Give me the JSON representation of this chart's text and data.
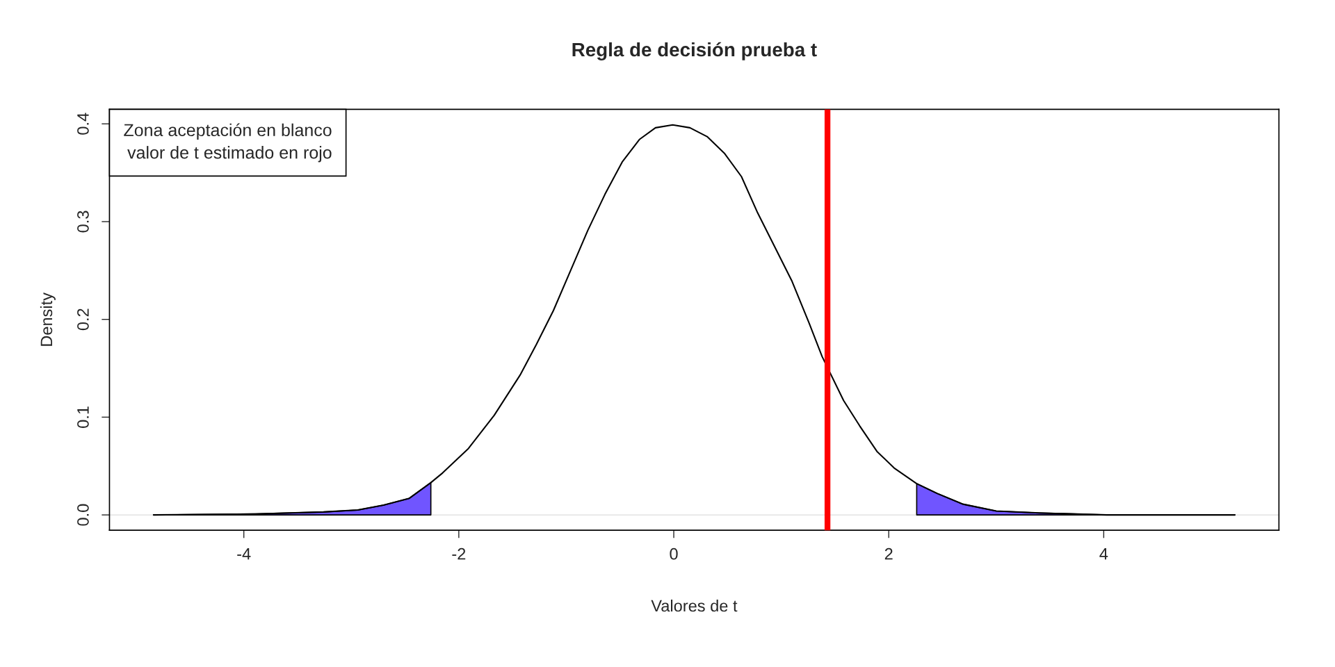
{
  "chart_data": {
    "type": "line",
    "title": "Regla de decisión prueba t",
    "xlabel": "Valores de t",
    "ylabel": "Density",
    "series": [
      {
        "color": "#000000",
        "x": [
          -4.84,
          -3.89,
          -3.26,
          -2.94,
          -2.7,
          -2.46,
          -2.26,
          -2.15,
          -1.91,
          -1.67,
          -1.43,
          -1.28,
          -1.12,
          -0.96,
          -0.8,
          -0.64,
          -0.48,
          -0.32,
          -0.17,
          -0.01,
          0.15,
          0.31,
          0.47,
          0.63,
          0.78,
          0.94,
          1.1,
          1.26,
          1.38,
          1.58,
          1.73,
          1.89,
          2.05,
          2.26,
          2.45,
          2.69,
          3.0,
          3.4,
          4.03,
          5.22
        ],
        "values": [
          0,
          0.001,
          0.003,
          0.005,
          0.01,
          0.017,
          0.033,
          0.043,
          0.068,
          0.102,
          0.143,
          0.174,
          0.209,
          0.25,
          0.291,
          0.328,
          0.361,
          0.384,
          0.396,
          0.399,
          0.396,
          0.387,
          0.37,
          0.346,
          0.309,
          0.274,
          0.239,
          0.196,
          0.162,
          0.117,
          0.091,
          0.065,
          0.048,
          0.032,
          0.022,
          0.011,
          0.004,
          0.002,
          0,
          0
        ]
      },
      {
        "type": "area",
        "color": "#7055ff",
        "x": [
          -4.84,
          -3.89,
          -3.26,
          -2.94,
          -2.7,
          -2.46,
          -2.26
        ],
        "values": [
          0,
          0.001,
          0.003,
          0.005,
          0.01,
          0.017,
          0.033
        ]
      },
      {
        "type": "area",
        "color": "#7055ff",
        "x": [
          2.26,
          2.45,
          2.69,
          3.0,
          3.4,
          4.03,
          5.22
        ],
        "values": [
          0.032,
          0.022,
          0.011,
          0.004,
          0.002,
          0,
          0
        ]
      }
    ],
    "ref_lines": [
      {
        "axis": "y",
        "value": 0,
        "color": "#dddddd"
      },
      {
        "axis": "x",
        "value": 1.43,
        "color": "#ff0000"
      }
    ],
    "annotations": [
      "Zona aceptación en blanco",
      "valor de t estimado en rojo"
    ],
    "xlim": [
      -5.25,
      5.63
    ],
    "ylim": [
      -0.0157,
      0.4148
    ],
    "xticks": [
      -4,
      -2,
      0,
      2,
      4
    ],
    "yticks": [
      {
        "value": 0,
        "label": "0.0"
      },
      {
        "value": 0.1,
        "label": "0.1"
      },
      {
        "value": 0.2,
        "label": "0.2"
      },
      {
        "value": 0.3,
        "label": "0.3"
      },
      {
        "value": 0.4,
        "label": "0.4"
      }
    ],
    "grid": false,
    "legend": false
  }
}
